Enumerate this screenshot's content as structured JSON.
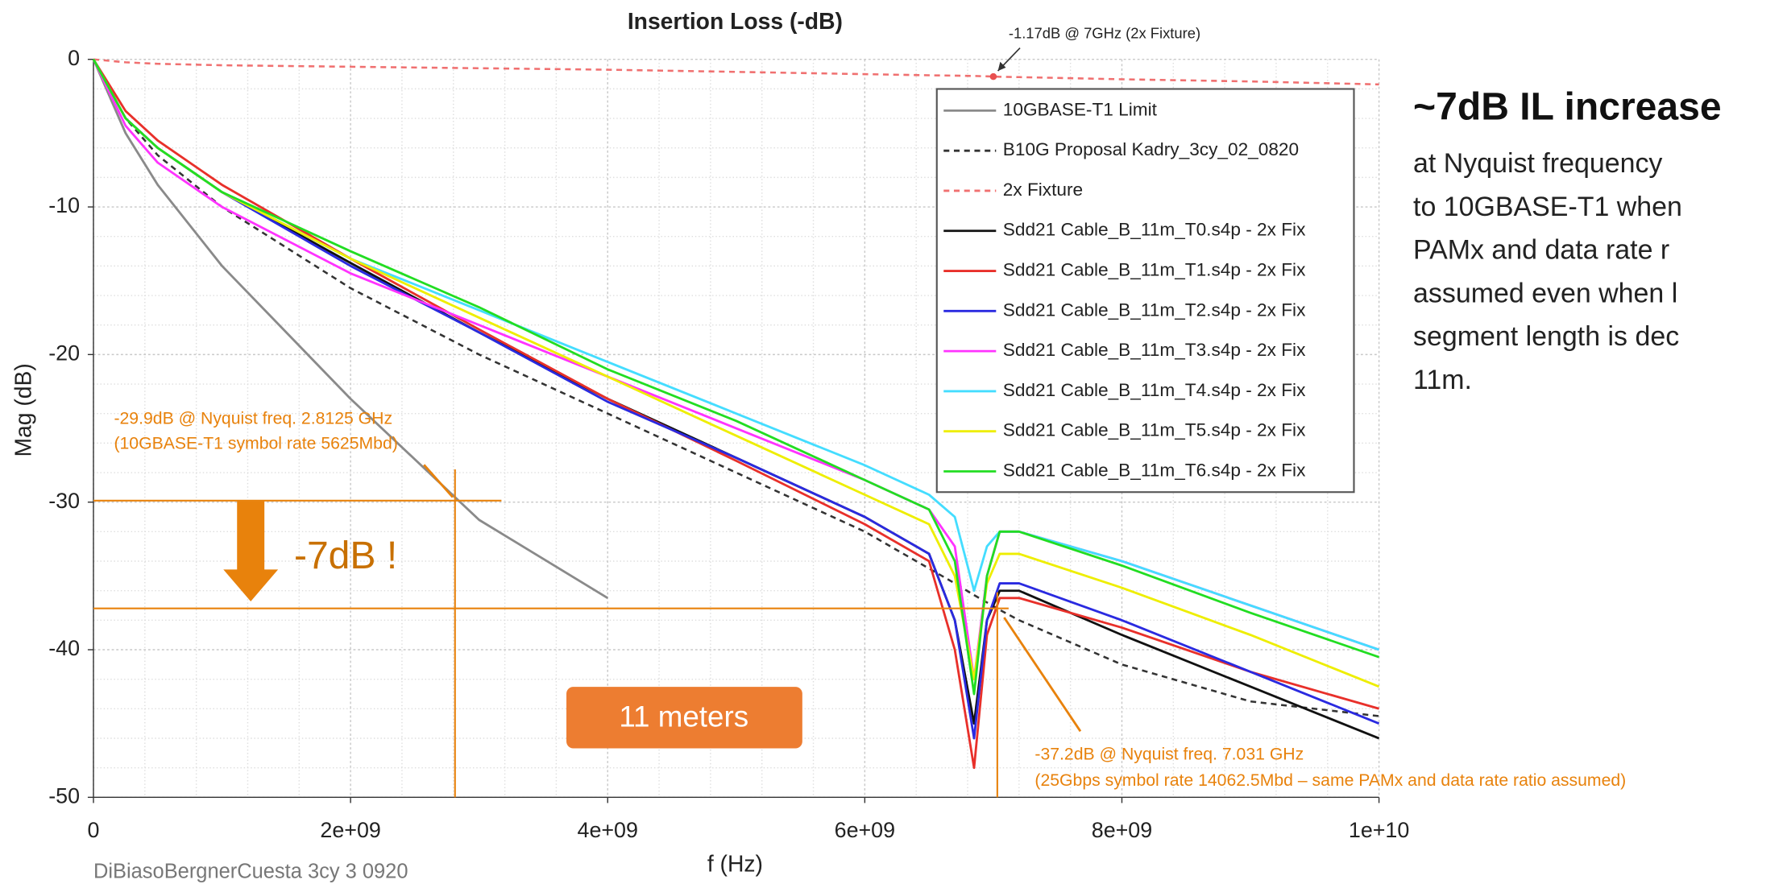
{
  "chart_data": {
    "type": "line",
    "title": "Insertion Loss (-dB)",
    "x_label": "f (Hz)",
    "y_label": "Mag (dB)",
    "xlim": [
      0,
      10000000000
    ],
    "ylim": [
      -50,
      0
    ],
    "xticks": [
      0,
      {
        "value": 2000000000,
        "label": "2e+09"
      },
      {
        "value": 4000000000,
        "label": "4e+09"
      },
      {
        "value": 6000000000,
        "label": "6e+09"
      },
      {
        "value": 8000000000,
        "label": "8e+09"
      },
      {
        "value": 10000000000,
        "label": "1e+10"
      }
    ],
    "yticks": [
      0,
      -10,
      -20,
      -30,
      -40,
      -50
    ],
    "grid": true,
    "legend": "upper right",
    "x": [
      0,
      250000000,
      500000000,
      1000000000,
      2000000000,
      3000000000,
      4000000000,
      5000000000,
      6000000000,
      6500000000,
      6700000000,
      6850000000,
      6950000000,
      7050000000,
      7200000000,
      8000000000,
      9000000000,
      10000000000
    ],
    "series": [
      {
        "name": "10GBASE-T1 Limit",
        "color": "#8a8a8a",
        "dash": false,
        "values": [
          0,
          -5,
          -8.5,
          -14,
          -23,
          -31.2,
          -36.5,
          null,
          null,
          null,
          null,
          null,
          null,
          null,
          null,
          null,
          null,
          null
        ]
      },
      {
        "name": "B10G Proposal Kadry_3cy_02_0820",
        "color": "#333333",
        "dash": true,
        "values": [
          0,
          -4,
          -6.5,
          -10,
          -15.5,
          -20,
          -24,
          -28,
          -32,
          -34.5,
          -35.5,
          -36.3,
          -36.8,
          -37.3,
          -38,
          -41,
          -43.5,
          -44.5
        ]
      },
      {
        "name": "2x Fixture",
        "color": "#f07070",
        "dash": true,
        "values": [
          0,
          -0.2,
          -0.3,
          -0.4,
          -0.5,
          -0.6,
          -0.7,
          -0.85,
          -1,
          -1.08,
          -1.1,
          -1.13,
          -1.15,
          -1.18,
          -1.2,
          -1.35,
          -1.5,
          -1.7
        ]
      },
      {
        "name": "Sdd21 Cable_B_11m_T0.s4p - 2x Fix",
        "color": "#111111",
        "dash": false,
        "values": [
          0,
          -4,
          -6,
          -9,
          -13.8,
          -18.5,
          -23,
          -27,
          -31,
          -33.5,
          -38,
          -45,
          -38,
          -36,
          -36,
          -39,
          -42.5,
          -46
        ]
      },
      {
        "name": "Sdd21 Cable_B_11m_T1.s4p - 2x Fix",
        "color": "#e8302a",
        "dash": false,
        "values": [
          0,
          -3.5,
          -5.5,
          -8.5,
          -13.5,
          -18.3,
          -23,
          -27.2,
          -31.5,
          -34,
          -40,
          -48,
          -39,
          -36.5,
          -36.5,
          -38.5,
          -41.5,
          -44
        ]
      },
      {
        "name": "Sdd21 Cable_B_11m_T2.s4p - 2x Fix",
        "color": "#2a2ae0",
        "dash": false,
        "values": [
          0,
          -4,
          -6,
          -9,
          -14,
          -18.5,
          -23.2,
          -27,
          -31,
          -33.5,
          -38,
          -46,
          -38,
          -35.5,
          -35.5,
          -38,
          -41.5,
          -45
        ]
      },
      {
        "name": "Sdd21 Cable_B_11m_T3.s4p - 2x Fix",
        "color": "#ff33ff",
        "dash": false,
        "values": [
          0,
          -4.5,
          -7,
          -10,
          -14.5,
          -18,
          -21.5,
          -25,
          -28.5,
          -30.5,
          -33,
          -42,
          -35,
          -32,
          -32,
          -34,
          -37,
          -40
        ]
      },
      {
        "name": "Sdd21 Cable_B_11m_T4.s4p - 2x Fix",
        "color": "#44ddff",
        "dash": false,
        "values": [
          0,
          -4,
          -6,
          -9,
          -13.5,
          -17,
          -20.5,
          -24,
          -27.5,
          -29.5,
          -31,
          -36,
          -33,
          -32,
          -32,
          -34,
          -37,
          -40
        ]
      },
      {
        "name": "Sdd21 Cable_B_11m_T5.s4p - 2x Fix",
        "color": "#eeee00",
        "dash": false,
        "values": [
          0,
          -4,
          -6,
          -9,
          -13.5,
          -17.5,
          -21.5,
          -25.5,
          -29.5,
          -31.5,
          -35,
          -42,
          -35.5,
          -33.5,
          -33.5,
          -35.8,
          -39,
          -42.5
        ]
      },
      {
        "name": "Sdd21 Cable_B_11m_T6.s4p - 2x Fix",
        "color": "#22dd22",
        "dash": false,
        "values": [
          0,
          -4,
          -6,
          -9,
          -13,
          -16.8,
          -21,
          -24.5,
          -28.5,
          -30.5,
          -34,
          -43,
          -35,
          -32,
          -32,
          -34.3,
          -37.5,
          -40.5
        ]
      }
    ],
    "markers": [
      {
        "x": 7000000000,
        "y": -1.17,
        "label": "-1.17dB @ 7GHz (2x Fixture)"
      },
      {
        "x": 2812500000,
        "y": -29.9,
        "label": "-29.9dB @ Nyquist freq. 2.8125 GHz",
        "note": "(10GBASE-T1 symbol rate 5625Mbd)"
      },
      {
        "x": 7031000000,
        "y": -37.2,
        "label": "-37.2dB @ Nyquist freq. 7.031 GHz",
        "note": "(25Gbps symbol rate 14062.5Mbd – same PAMx and data rate ratio assumed)"
      }
    ],
    "delta_label": "-7dB !",
    "badge": "11 meters",
    "footer": "DiBiasoBergnerCuesta  3cy  3  0920",
    "side_heading": "~7dB IL increase",
    "side_lines": [
      "at Nyquist frequency",
      "to 10GBASE-T1 when",
      "PAMx and data rate r",
      "assumed even when l",
      "segment length is dec",
      "11m."
    ]
  }
}
